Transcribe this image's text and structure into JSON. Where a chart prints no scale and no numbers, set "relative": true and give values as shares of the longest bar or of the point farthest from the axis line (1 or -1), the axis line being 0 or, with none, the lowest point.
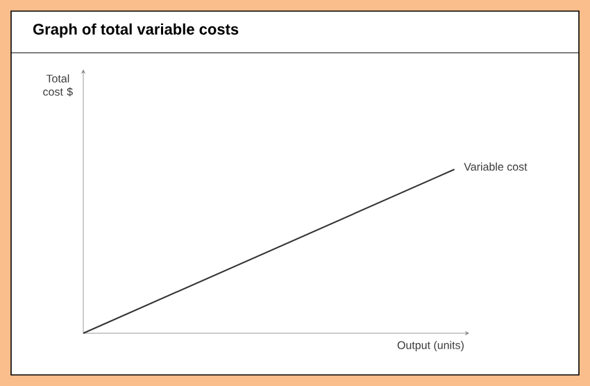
{
  "chart_data": {
    "type": "line",
    "title": "Graph of total variable costs",
    "xlabel": "Output (units)",
    "annotations": [
      "Total cost $"
    ],
    "categories": [
      null,
      null
    ],
    "relative": true,
    "series": [
      {
        "name": "Variable cost",
        "color": "#333333",
        "values": [
          0,
          1
        ]
      }
    ]
  }
}
